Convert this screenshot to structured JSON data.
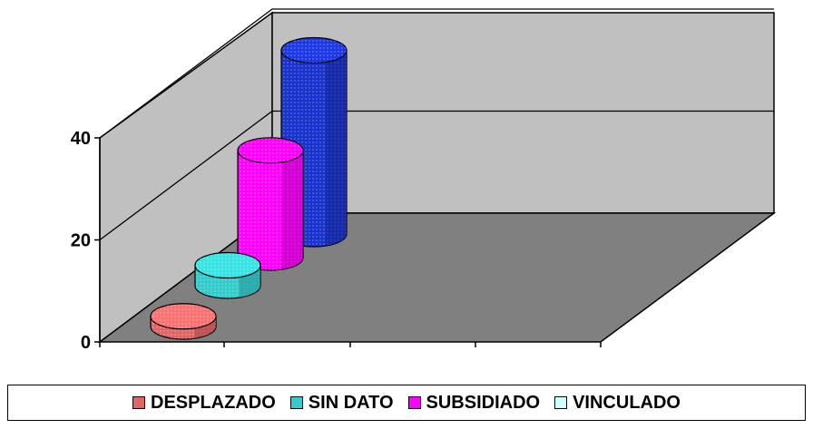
{
  "chart_data": {
    "type": "bar",
    "title": "",
    "xlabel": "",
    "ylabel": "",
    "ylim": [
      0,
      40
    ],
    "yticks": [
      0,
      20,
      40
    ],
    "grid": true,
    "legend_position": "bottom",
    "series": [
      {
        "name": "DESPLAZADO",
        "values": [
          2
        ],
        "color": "#e06666"
      },
      {
        "name": "SIN DATO",
        "values": [
          4
        ],
        "color": "#33cccc"
      },
      {
        "name": "SUBSIDIADO",
        "values": [
          21
        ],
        "color": "#ff00ff"
      },
      {
        "name": "VINCULADO",
        "values": [
          1
        ],
        "color": "#ccffff"
      },
      {
        "name": "",
        "values": [
          36
        ],
        "color": "#1a33cc"
      }
    ]
  }
}
